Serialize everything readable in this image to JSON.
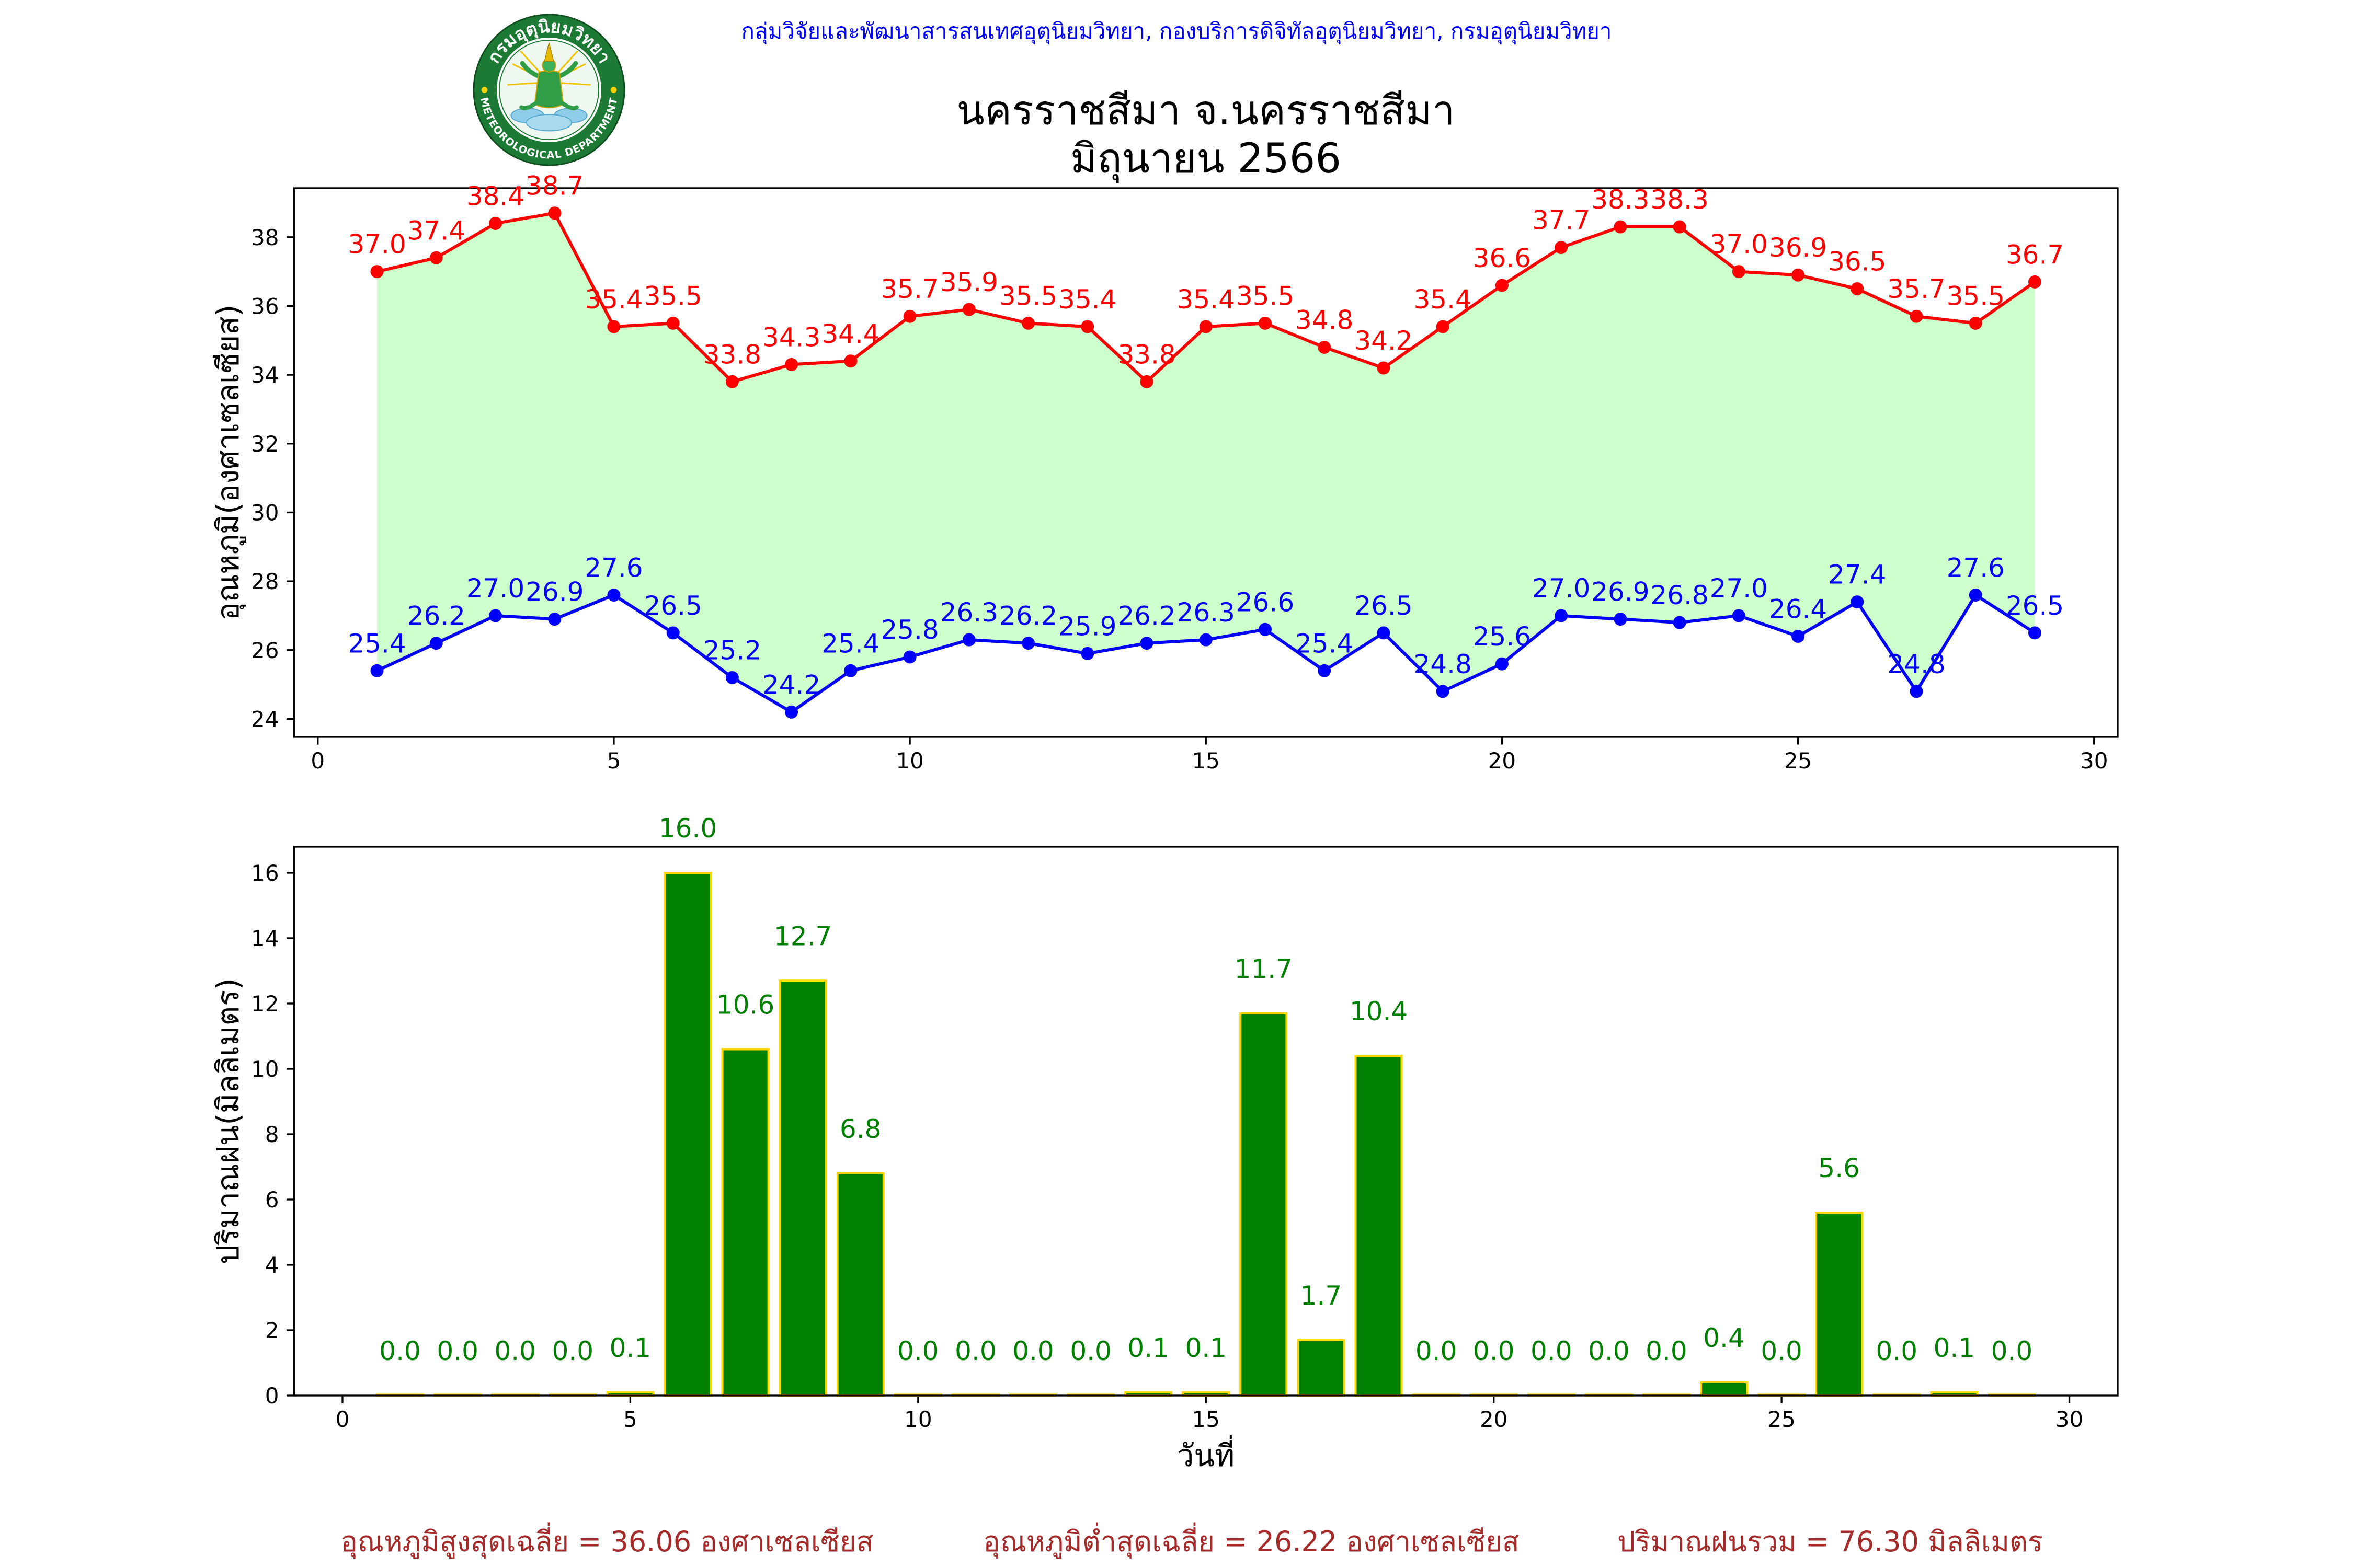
{
  "header": {
    "agency": "กลุ่มวิจัยและพัฒนาสารสนเทศอุตุนิยมวิทยา, กองบริการดิจิทัลอุตุนิยมวิทยา, กรมอุตุนิยมวิทยา",
    "title_line1": "นครราชสีมา จ.นครราชสีมา",
    "title_line2": "มิถุนายน 2566"
  },
  "logo": {
    "icon": "meteorological-department-seal",
    "text_top": "กรมอุตุนิยมวิทยา",
    "text_bottom": "METEOROLOGICAL DEPARTMENT"
  },
  "colors": {
    "agency_text": "#0000ff",
    "title_text": "#000000",
    "footer_text": "#a52a2a"
  },
  "chart_data": [
    {
      "type": "line",
      "x": [
        1,
        2,
        3,
        4,
        5,
        6,
        7,
        8,
        9,
        10,
        11,
        12,
        13,
        14,
        15,
        16,
        17,
        18,
        19,
        20,
        21,
        22,
        23,
        24,
        25,
        26,
        27,
        28,
        29
      ],
      "series": [
        {
          "values": [
            37.0,
            37.4,
            38.4,
            38.7,
            35.4,
            35.5,
            33.8,
            34.3,
            34.4,
            35.7,
            35.9,
            35.5,
            35.4,
            33.8,
            35.4,
            35.5,
            34.8,
            34.2,
            35.4,
            36.6,
            37.7,
            38.3,
            38.3,
            37.0,
            36.9,
            36.5,
            35.7,
            35.5,
            36.7
          ],
          "color": "#ff0000"
        },
        {
          "values": [
            25.4,
            26.2,
            27.0,
            26.9,
            27.6,
            26.5,
            25.2,
            24.2,
            25.4,
            25.8,
            26.3,
            26.2,
            25.9,
            26.2,
            26.3,
            26.6,
            25.4,
            26.5,
            24.8,
            25.6,
            27.0,
            26.9,
            26.8,
            27.0,
            26.4,
            27.4,
            24.8,
            27.6,
            26.5
          ],
          "color": "#0000ff"
        }
      ],
      "fill_color": "#ccffcc",
      "ylabel": "อุณหภูมิ(องศาเซลเซียส)",
      "xlim": [
        -0.4,
        30.4
      ],
      "ylim": [
        23.475,
        39.425
      ],
      "xticks": [
        0,
        5,
        10,
        15,
        20,
        25,
        30
      ],
      "yticks": [
        24,
        26,
        28,
        30,
        32,
        34,
        36,
        38
      ],
      "grid": false
    },
    {
      "type": "bar",
      "x": [
        1,
        2,
        3,
        4,
        5,
        6,
        7,
        8,
        9,
        10,
        11,
        12,
        13,
        14,
        15,
        16,
        17,
        18,
        19,
        20,
        21,
        22,
        23,
        24,
        25,
        26,
        27,
        28,
        29
      ],
      "values": [
        0.0,
        0.0,
        0.0,
        0.0,
        0.1,
        16.0,
        10.6,
        12.7,
        6.8,
        0.0,
        0.0,
        0.0,
        0.0,
        0.1,
        0.1,
        11.7,
        1.7,
        10.4,
        0.0,
        0.0,
        0.0,
        0.0,
        0.0,
        0.4,
        0.0,
        5.6,
        0.0,
        0.1,
        0.0
      ],
      "bar_color": "#008000",
      "edge_color": "#ffd700",
      "label_color": "#008000",
      "xlabel": "วันที่",
      "ylabel": "ปริมาณฝน(มิลลิเมตร)",
      "xlim": [
        -0.84,
        30.84
      ],
      "ylim": [
        0,
        16.8
      ],
      "xticks": [
        0,
        5,
        10,
        15,
        20,
        25,
        30
      ],
      "yticks": [
        0,
        2,
        4,
        6,
        8,
        10,
        12,
        14,
        16
      ],
      "grid": false
    }
  ],
  "footer": {
    "avg_max": "อุณหภูมิสูงสุดเฉลี่ย = 36.06 องศาเซลเซียส",
    "avg_min": "อุณหภูมิต่ำสุดเฉลี่ย = 26.22 องศาเซลเซียส",
    "rain_total": "ปริมาณฝนรวม = 76.30 มิลลิเมตร"
  }
}
